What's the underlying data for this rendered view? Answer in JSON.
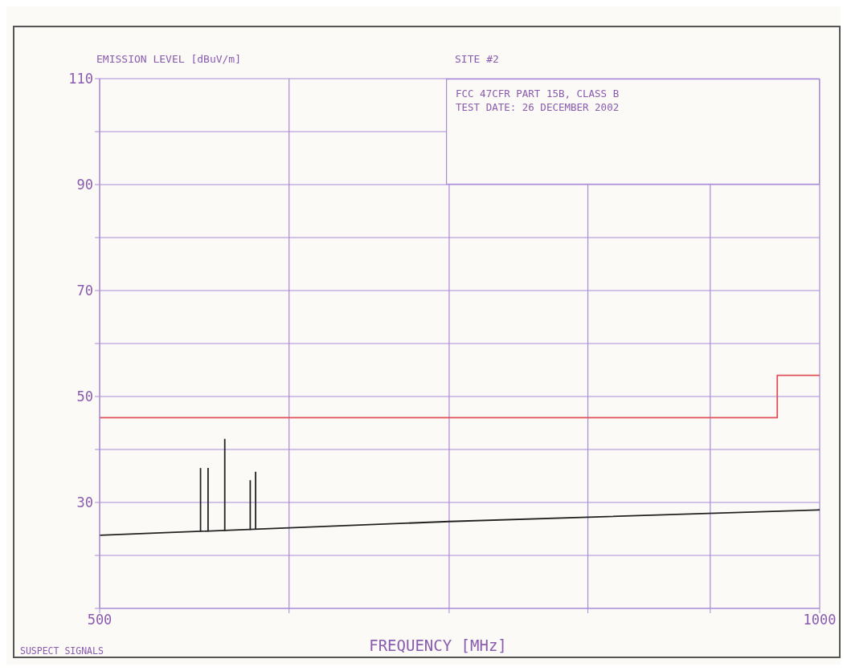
{
  "chart_data": {
    "type": "line",
    "title": "SITE #2",
    "ylabel": "EMISSION LEVEL [dBuV/m]",
    "xlabel": "FREQUENCY [MHz]",
    "annotations": [
      "FCC 47CFR PART 15B, CLASS B",
      "TEST DATE: 26 DECEMBER 2002",
      "SUSPECT SIGNALS"
    ],
    "log": "x",
    "grid": true,
    "marker": "none",
    "line_style": "solid",
    "xlim": [
      500,
      1000
    ],
    "xticks": [
      500,
      {
        "value": 600,
        "label": null
      },
      {
        "value": 700,
        "label": null
      },
      {
        "value": 800,
        "label": null
      },
      {
        "value": 900,
        "label": null
      },
      1000
    ],
    "ylim": [
      10,
      110
    ],
    "yticks": [
      {
        "value": 10,
        "label": null
      },
      {
        "value": 20,
        "label": null
      },
      30,
      {
        "value": 40,
        "label": null
      },
      50,
      {
        "value": 60,
        "label": null
      },
      70,
      {
        "value": 80,
        "label": null
      },
      90,
      {
        "value": 100,
        "label": null
      },
      110
    ],
    "series": [
      {
        "color": "#e0505a",
        "x": [
          500,
          960,
          960,
          1000
        ],
        "values": [
          46,
          46,
          54,
          54
        ]
      },
      {
        "color": "#222222",
        "x": [
          500,
          700,
          1000
        ],
        "values": [
          23.8,
          26.4,
          28.6
        ]
      },
      {
        "color": "#222222",
        "x": [
          551,
          551
        ],
        "values": [
          24.5,
          36.5
        ]
      },
      {
        "color": "#222222",
        "x": [
          555,
          555
        ],
        "values": [
          24.5,
          36.5
        ]
      },
      {
        "color": "#222222",
        "x": [
          564,
          564
        ],
        "values": [
          24.6,
          42
        ]
      },
      {
        "color": "#222222",
        "x": [
          578,
          578
        ],
        "values": [
          24.8,
          34.2
        ]
      },
      {
        "color": "#222222",
        "x": [
          581,
          581
        ],
        "values": [
          24.9,
          35.8
        ]
      }
    ]
  }
}
